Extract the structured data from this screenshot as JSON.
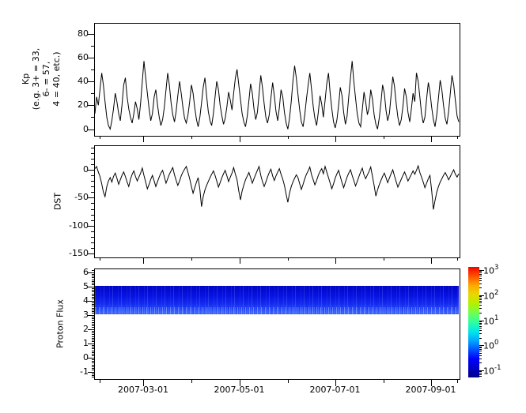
{
  "figure": {
    "background": "#ffffff",
    "frame_color": "#000000"
  },
  "x_axis": {
    "tick_labels": [
      "2007-03-01",
      "2007-05-01",
      "2007-07-01",
      "2007-09-01"
    ],
    "major_fractions": [
      0.1342,
      0.3972,
      0.6591,
      0.921
    ],
    "minor_fractions": [
      0.0145,
      0.2669,
      0.5298,
      0.7916,
      0.9925
    ]
  },
  "chart_data": [
    {
      "type": "line",
      "id": "kp",
      "ylabel_lines": [
        "Kp",
        "(e.g. 3+ = 33,",
        "6- = 57,",
        "4 = 40, etc.)"
      ],
      "yticks": [
        80,
        60,
        40,
        20,
        0
      ],
      "ylim": [
        -6,
        89
      ],
      "xlim": [
        "2007-01-28",
        "2007-09-19"
      ],
      "grid": false,
      "series": [
        {
          "name": "Kp index",
          "color": "#000000",
          "values": [
            13,
            27,
            20,
            33,
            47,
            37,
            23,
            10,
            3,
            0,
            7,
            17,
            30,
            23,
            13,
            7,
            20,
            37,
            43,
            27,
            17,
            10,
            5,
            13,
            23,
            17,
            8,
            22,
            40,
            57,
            43,
            30,
            17,
            7,
            13,
            27,
            33,
            20,
            10,
            3,
            8,
            18,
            33,
            47,
            37,
            22,
            12,
            6,
            15,
            28,
            40,
            30,
            18,
            9,
            5,
            12,
            23,
            37,
            30,
            18,
            8,
            2,
            10,
            22,
            35,
            43,
            28,
            15,
            7,
            3,
            13,
            27,
            40,
            33,
            20,
            11,
            4,
            9,
            19,
            31,
            24,
            16,
            30,
            43,
            50,
            37,
            25,
            13,
            6,
            2,
            11,
            24,
            38,
            30,
            17,
            8,
            14,
            29,
            45,
            35,
            21,
            10,
            5,
            12,
            26,
            39,
            28,
            15,
            7,
            18,
            33,
            27,
            14,
            5,
            0,
            9,
            23,
            40,
            53,
            43,
            29,
            16,
            6,
            2,
            12,
            25,
            37,
            47,
            33,
            19,
            9,
            3,
            14,
            28,
            21,
            10,
            24,
            38,
            47,
            30,
            17,
            6,
            1,
            8,
            20,
            35,
            28,
            14,
            4,
            11,
            27,
            43,
            57,
            40,
            26,
            13,
            5,
            2,
            16,
            31,
            23,
            12,
            18,
            33,
            25,
            12,
            4,
            0,
            9,
            22,
            37,
            30,
            16,
            7,
            13,
            28,
            44,
            36,
            22,
            10,
            3,
            8,
            19,
            34,
            27,
            14,
            6,
            17,
            30,
            23,
            47,
            40,
            27,
            13,
            5,
            10,
            25,
            39,
            31,
            18,
            8,
            2,
            12,
            26,
            41,
            33,
            20,
            9,
            4,
            15,
            30,
            45,
            37,
            24,
            11,
            6
          ]
        }
      ]
    },
    {
      "type": "line",
      "id": "dst",
      "ylabel": "DST",
      "yticks": [
        0,
        -50,
        -100,
        -150
      ],
      "ylim": [
        -155,
        45
      ],
      "grid": false,
      "series": [
        {
          "name": "DST",
          "color": "#000000",
          "values": [
            2,
            6,
            -4,
            -12,
            -25,
            -40,
            -48,
            -30,
            -20,
            -14,
            -22,
            -12,
            -6,
            -15,
            -26,
            -18,
            -10,
            -4,
            -12,
            -22,
            -30,
            -17,
            -8,
            -2,
            -12,
            -20,
            -13,
            -6,
            3,
            -10,
            -22,
            -34,
            -26,
            -17,
            -10,
            -20,
            -30,
            -21,
            -13,
            -6,
            -1,
            -12,
            -24,
            -16,
            -8,
            -2,
            4,
            -9,
            -19,
            -28,
            -20,
            -11,
            -4,
            1,
            6,
            -5,
            -16,
            -30,
            -42,
            -32,
            -22,
            -14,
            -35,
            -66,
            -48,
            -36,
            -28,
            -21,
            -14,
            -8,
            -2,
            -10,
            -20,
            -31,
            -23,
            -14,
            -7,
            -1,
            -11,
            -21,
            -13,
            -6,
            4,
            -8,
            -18,
            -38,
            -54,
            -38,
            -27,
            -18,
            -11,
            -5,
            -14,
            -24,
            -16,
            -8,
            -1,
            6,
            -10,
            -21,
            -30,
            -22,
            -13,
            -5,
            1,
            -11,
            -19,
            -11,
            -4,
            2,
            -8,
            -17,
            -28,
            -44,
            -58,
            -42,
            -30,
            -22,
            -15,
            -9,
            -14,
            -25,
            -35,
            -26,
            -16,
            -8,
            -2,
            5,
            -9,
            -18,
            -27,
            -19,
            -10,
            -3,
            2,
            -7,
            6,
            -4,
            -14,
            -24,
            -34,
            -25,
            -15,
            -7,
            -1,
            -12,
            -23,
            -32,
            -22,
            -13,
            -6,
            0,
            -10,
            -19,
            -29,
            -21,
            -12,
            -4,
            3,
            -9,
            -16,
            -9,
            -3,
            5,
            -12,
            -28,
            -47,
            -36,
            -27,
            -19,
            -12,
            -6,
            -14,
            -23,
            -15,
            -7,
            0,
            -11,
            -21,
            -31,
            -24,
            -17,
            -10,
            -4,
            -12,
            -20,
            -14,
            -8,
            -2,
            -8,
            -1,
            7,
            -5,
            -13,
            -22,
            -32,
            -24,
            -16,
            -10,
            -38,
            -71,
            -55,
            -40,
            -30,
            -22,
            -16,
            -10,
            -5,
            -11,
            -18,
            -12,
            -6,
            0,
            -8,
            -13,
            -7
          ]
        }
      ]
    },
    {
      "type": "heatmap",
      "id": "proton_flux",
      "ylabel": "Proton Flux",
      "yticks": [
        6,
        5,
        4,
        3,
        2,
        1,
        0,
        -1
      ],
      "ylim": [
        -1.55,
        6.25
      ],
      "band": {
        "y_min": 3,
        "y_max": 5,
        "flux_rows": [
          {
            "y_range": [
              4.5,
              5.0
            ],
            "flux": 0.08
          },
          {
            "y_range": [
              3.5,
              4.5
            ],
            "flux": 0.12
          },
          {
            "y_range": [
              3.0,
              3.5
            ],
            "flux": 0.3
          }
        ]
      },
      "colorbar": {
        "scale": "log",
        "base": "10",
        "tick_exponents": [
          3,
          2,
          1,
          0,
          -1
        ],
        "colormap": "jet",
        "colormap_stops": [
          "#000082",
          "#0000c8",
          "#0000fa",
          "#0050ff",
          "#00a8ff",
          "#00e8e8",
          "#30ffa0",
          "#70ff50",
          "#b4f000",
          "#e8d800",
          "#ffa800",
          "#ff5000",
          "#f00500"
        ]
      }
    }
  ]
}
